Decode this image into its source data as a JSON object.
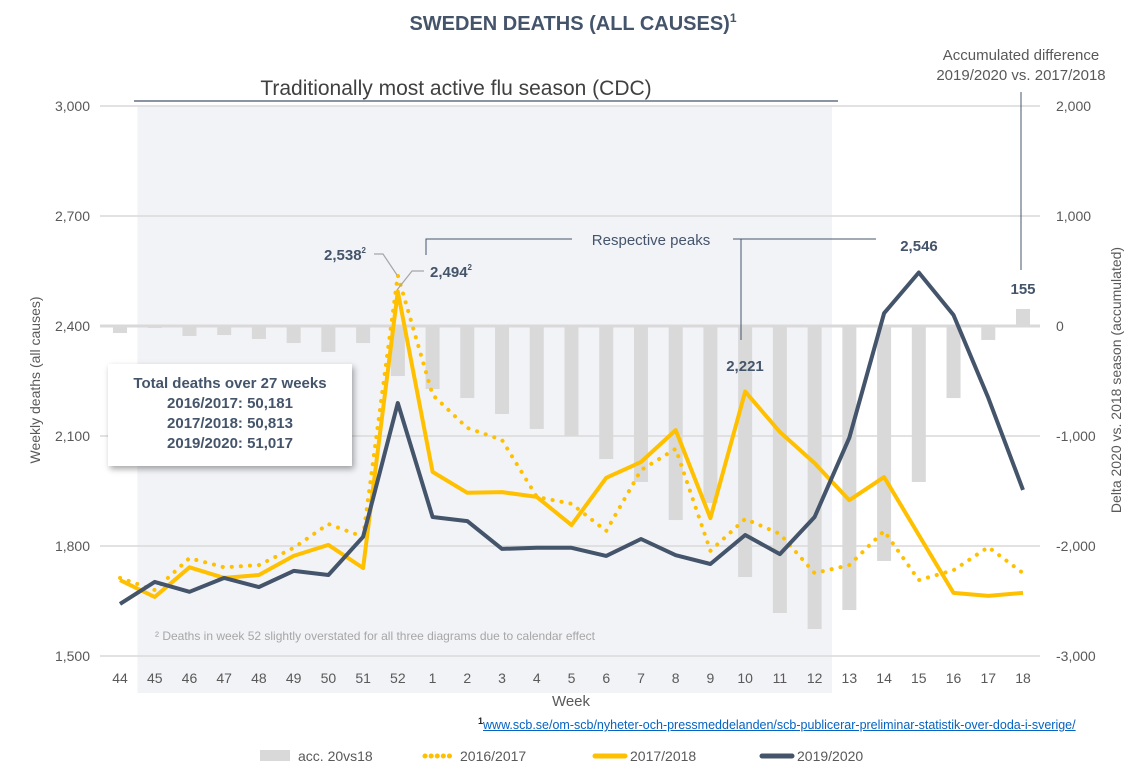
{
  "title": "SWEDEN DEATHS (ALL CAUSES)",
  "title_sup": "1",
  "flu_season_label": "Traditionally most active flu season (CDC)",
  "acc_diff_label": [
    "Accumulated difference",
    "2019/2020 vs. 2017/2018"
  ],
  "peaks_label": "Respective peaks",
  "footnote2": "² Deaths in week 52 slightly overstated for all three diagrams due to calendar effect",
  "source_sup": "1",
  "source_link": "www.scb.se/om-scb/nyheter-och-pressmeddelanden/scb-publicerar-preliminar-statistik-over-doda-i-sverige/",
  "totals": {
    "title": "Total deaths over 27 weeks",
    "lines": [
      "2016/2017: 50,181",
      "2017/2018: 50,813",
      "2019/2020: 51,017"
    ]
  },
  "annotations": {
    "peak_1617": "2,538",
    "peak_1718": "2,494",
    "peak_1718_w10": "2,221",
    "peak_1920": "2,546",
    "acc_end": "155",
    "sup": "2"
  },
  "colors": {
    "s1920": "#44546a",
    "s1718": "#ffc000",
    "s1617": "#ffc000",
    "bars": "#d9d9d9",
    "shade": "#f2f3f7"
  },
  "chart_data": {
    "type": "line",
    "title": "SWEDEN DEATHS (ALL CAUSES)",
    "xlabel": "Week",
    "ylabel": "Weekly deaths (all causes)",
    "y2label": "Delta 2020 vs. 2018 season (accumulated)",
    "ylim": [
      1500,
      3000
    ],
    "yticks": [
      "1,500",
      "1,800",
      "2,100",
      "2,400",
      "2,700",
      "3,000"
    ],
    "ytick_values": [
      1500,
      1800,
      2100,
      2400,
      2700,
      3000
    ],
    "y2lim": [
      -3000,
      2000
    ],
    "y2ticks": [
      "-3,000",
      "-2,000",
      "-1,000",
      "0",
      "1,000",
      "2,000"
    ],
    "y2tick_values": [
      -3000,
      -2000,
      -1000,
      0,
      1000,
      2000
    ],
    "categories": [
      "44",
      "45",
      "46",
      "47",
      "48",
      "49",
      "50",
      "51",
      "52",
      "1",
      "2",
      "3",
      "4",
      "5",
      "6",
      "7",
      "8",
      "9",
      "10",
      "11",
      "12",
      "13",
      "14",
      "15",
      "16",
      "17",
      "18"
    ],
    "shaded_range": [
      "45",
      "12"
    ],
    "series": [
      {
        "name": "acc. 20vs18",
        "type": "bar",
        "axis": "right",
        "values": [
          -64,
          -18,
          -91,
          -82,
          -118,
          -155,
          -236,
          -155,
          -455,
          -573,
          -655,
          -800,
          -936,
          -1000,
          -1209,
          -1418,
          -1764,
          -1609,
          -2282,
          -2609,
          -2755,
          -2582,
          -2136,
          -1418,
          -655,
          -127,
          155
        ]
      },
      {
        "name": "2016/2017",
        "type": "dotted",
        "values": [
          1713,
          1680,
          1767,
          1742,
          1748,
          1795,
          1860,
          1825,
          2538,
          2212,
          2122,
          2089,
          1934,
          1915,
          1841,
          2007,
          2065,
          1787,
          1874,
          1833,
          1726,
          1748,
          1841,
          1707,
          1734,
          1797,
          1726
        ]
      },
      {
        "name": "2017/2018",
        "type": "solid",
        "values": [
          1707,
          1661,
          1742,
          1713,
          1721,
          1773,
          1803,
          1740,
          2494,
          2002,
          1945,
          1947,
          1934,
          1857,
          1986,
          2029,
          2116,
          1876,
          2221,
          2111,
          2026,
          1925,
          1988,
          1830,
          1672,
          1664,
          1672
        ]
      },
      {
        "name": "2019/2020",
        "type": "solid",
        "values": [
          1642,
          1702,
          1675,
          1713,
          1688,
          1732,
          1721,
          1825,
          2190,
          1879,
          1868,
          1792,
          1795,
          1795,
          1773,
          1819,
          1775,
          1751,
          1830,
          1778,
          1879,
          2095,
          2435,
          2546,
          2430,
          2204,
          1953
        ]
      }
    ],
    "legend": [
      "acc. 20vs18",
      "2016/2017",
      "2017/2018",
      "2019/2020"
    ],
    "legend_position": "bottom",
    "grid": true
  }
}
